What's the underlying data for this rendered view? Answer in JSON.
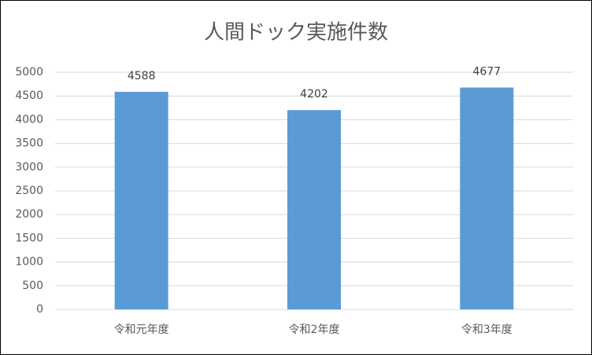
{
  "chart_data": {
    "type": "bar",
    "title": "人間ドック実施件数",
    "categories": [
      "令和元年度",
      "令和2年度",
      "令和3年度"
    ],
    "values": [
      4588,
      4202,
      4677
    ],
    "color": "#5b9bd5",
    "ylim": [
      0,
      5000
    ],
    "yticks": [
      0,
      500,
      1000,
      1500,
      2000,
      2500,
      3000,
      3500,
      4000,
      4500,
      5000
    ],
    "grid": true
  }
}
